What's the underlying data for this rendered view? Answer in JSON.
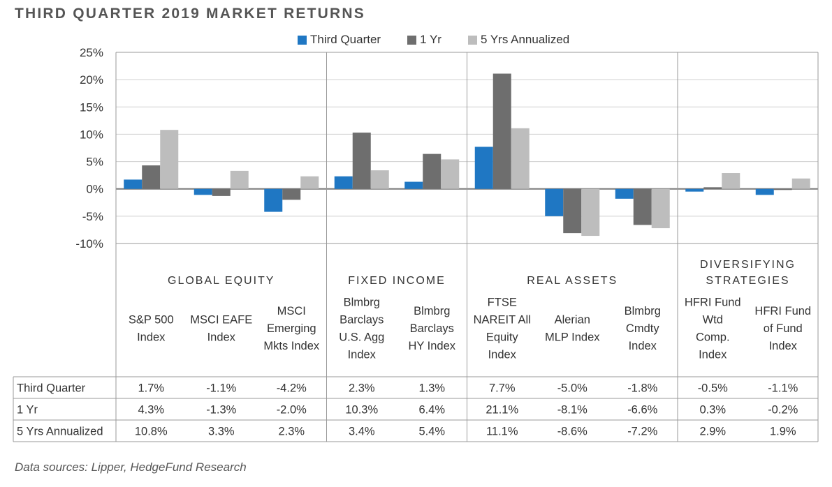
{
  "title": "THIRD QUARTER 2019 MARKET RETURNS",
  "source": "Data sources: Lipper, HedgeFund Research",
  "colors": {
    "Third Quarter": "#1f77c3",
    "1 Yr": "#6e6e6e",
    "5 Yrs Annualized": "#bdbdbd"
  },
  "chart_data": {
    "type": "bar",
    "ylim": [
      -10,
      25
    ],
    "yticks": [
      25,
      20,
      15,
      10,
      5,
      0,
      -5,
      -10
    ],
    "ytick_labels": [
      "25%",
      "20%",
      "15%",
      "10%",
      "5%",
      "0%",
      "-5%",
      "-10%"
    ],
    "grid": true,
    "legend_position": "top",
    "groups": [
      {
        "label": [
          "GLOBAL EQUITY"
        ],
        "count": 3
      },
      {
        "label": [
          "FIXED INCOME"
        ],
        "count": 2
      },
      {
        "label": [
          "REAL ASSETS"
        ],
        "count": 3
      },
      {
        "label": [
          "DIVERSIFYING",
          "STRATEGIES"
        ],
        "count": 2
      }
    ],
    "categories": [
      [
        "S&P 500",
        "Index"
      ],
      [
        "MSCI EAFE",
        "Index"
      ],
      [
        "MSCI",
        "Emerging",
        "Mkts Index"
      ],
      [
        "Blmbrg",
        "Barclays",
        "U.S. Agg",
        "Index"
      ],
      [
        "Blmbrg",
        "Barclays",
        "HY Index"
      ],
      [
        "FTSE",
        "NAREIT All",
        "Equity",
        "Index"
      ],
      [
        "Alerian",
        "MLP Index"
      ],
      [
        "Blmbrg",
        "Cmdty",
        "Index"
      ],
      [
        "HFRI Fund",
        "Wtd",
        "Comp.",
        "Index"
      ],
      [
        "HFRI Fund",
        "of Fund",
        "Index"
      ]
    ],
    "series": [
      {
        "name": "Third Quarter",
        "values": [
          1.7,
          -1.1,
          -4.2,
          2.3,
          1.3,
          7.7,
          -5.0,
          -1.8,
          -0.5,
          -1.1
        ],
        "labels": [
          "1.7%",
          "-1.1%",
          "-4.2%",
          "2.3%",
          "1.3%",
          "7.7%",
          "-5.0%",
          "-1.8%",
          "-0.5%",
          "-1.1%"
        ]
      },
      {
        "name": "1 Yr",
        "values": [
          4.3,
          -1.3,
          -2.0,
          10.3,
          6.4,
          21.1,
          -8.1,
          -6.6,
          0.3,
          -0.2
        ],
        "labels": [
          "4.3%",
          "-1.3%",
          "-2.0%",
          "10.3%",
          "6.4%",
          "21.1%",
          "-8.1%",
          "-6.6%",
          "0.3%",
          "-0.2%"
        ]
      },
      {
        "name": "5 Yrs Annualized",
        "values": [
          10.8,
          3.3,
          2.3,
          3.4,
          5.4,
          11.1,
          -8.6,
          -7.2,
          2.9,
          1.9
        ],
        "labels": [
          "10.8%",
          "3.3%",
          "2.3%",
          "3.4%",
          "5.4%",
          "11.1%",
          "-8.6%",
          "-7.2%",
          "2.9%",
          "1.9%"
        ]
      }
    ]
  }
}
